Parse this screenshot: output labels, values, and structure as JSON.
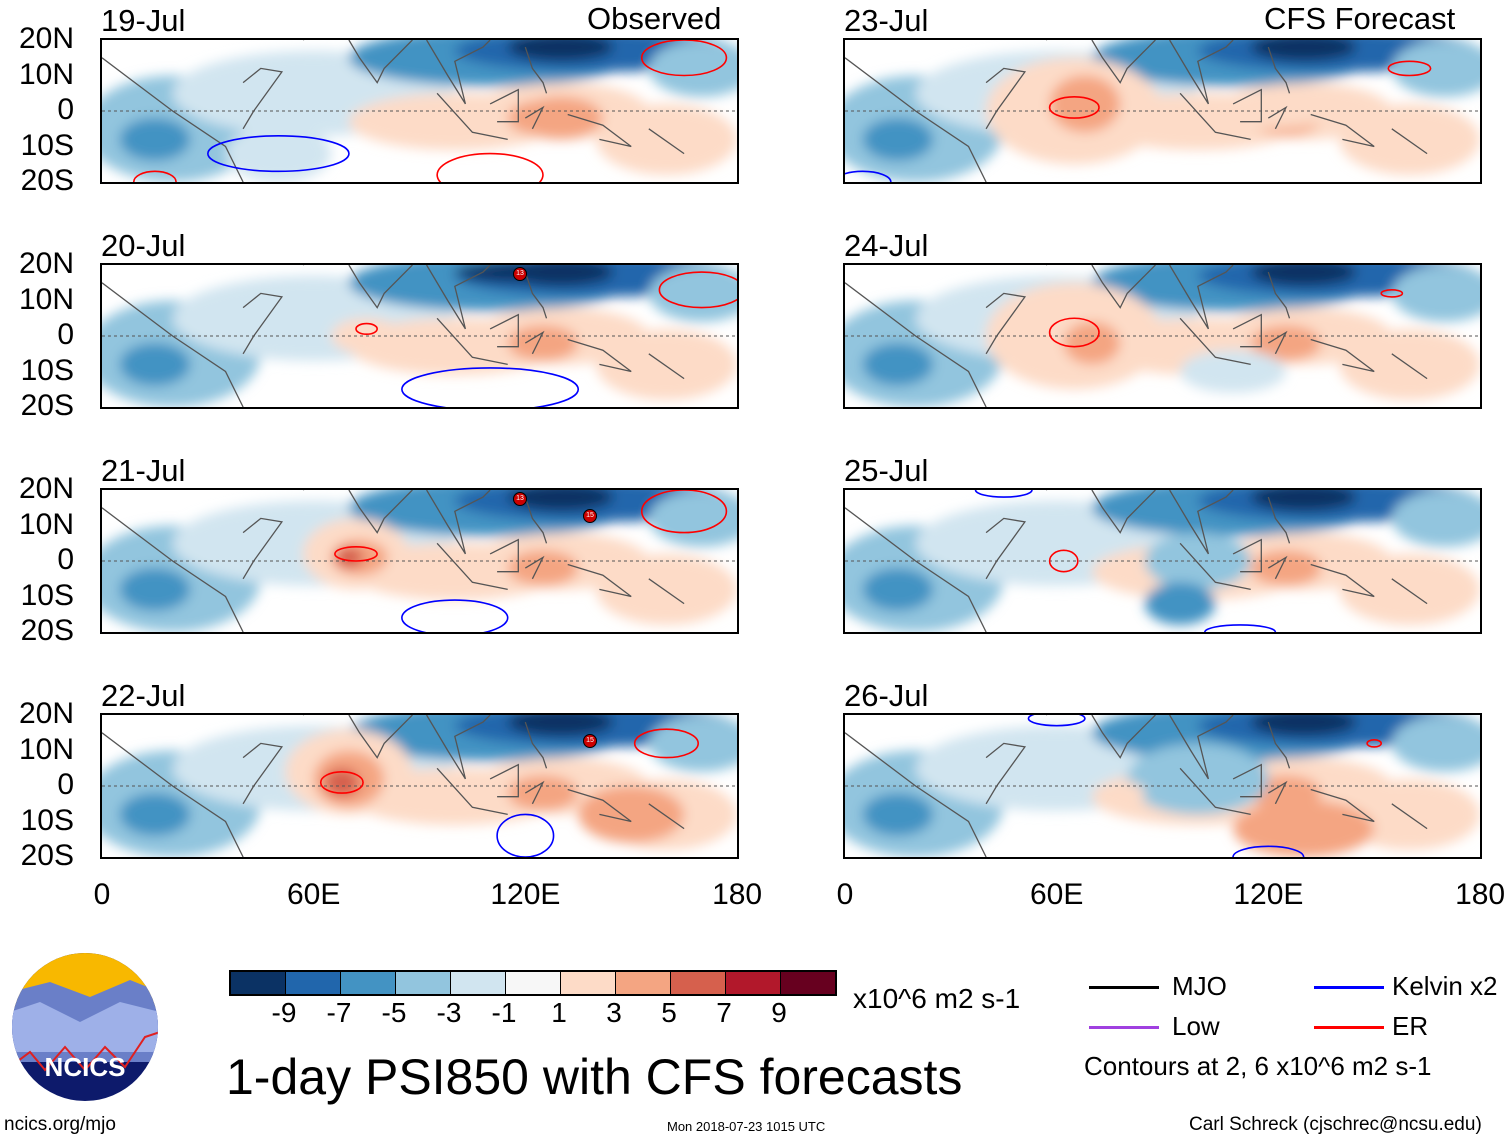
{
  "headers": {
    "observed": "Observed",
    "forecast": "CFS Forecast"
  },
  "panels_left": [
    {
      "date": "19-Jul"
    },
    {
      "date": "20-Jul"
    },
    {
      "date": "21-Jul"
    },
    {
      "date": "22-Jul"
    }
  ],
  "panels_right": [
    {
      "date": "23-Jul"
    },
    {
      "date": "24-Jul"
    },
    {
      "date": "25-Jul"
    },
    {
      "date": "26-Jul"
    }
  ],
  "lat_labels": [
    "20N",
    "10N",
    "0",
    "10S",
    "20S"
  ],
  "lon_labels": [
    "0",
    "60E",
    "120E",
    "180"
  ],
  "storm_markers": {
    "a": "13",
    "b": "15"
  },
  "colorbar": {
    "colors": [
      "#0b3264",
      "#2166ac",
      "#4393c3",
      "#92c5de",
      "#d1e5f0",
      "#f7f7f7",
      "#fddbc7",
      "#f4a582",
      "#d6604d",
      "#b2182b",
      "#67001f"
    ],
    "labels": [
      "-9",
      "-7",
      "-5",
      "-3",
      "-1",
      "1",
      "3",
      "5",
      "7",
      "9"
    ],
    "units": "x10^6 m2 s-1"
  },
  "title": "1-day PSI850 with CFS forecasts",
  "legend": {
    "items": [
      {
        "label": "MJO",
        "color": "#000000"
      },
      {
        "label": "Kelvin x2",
        "color": "#0000ff"
      },
      {
        "label": "Low",
        "color": "#a040e0"
      },
      {
        "label": "ER",
        "color": "#ff0000"
      }
    ],
    "note": "Contours at 2, 6 x10^6 m2 s-1"
  },
  "footer": {
    "left": "ncics.org/mjo",
    "center": "Mon 2018-07-23 1015 UTC",
    "right": "Carl Schreck (cjschrec@ncsu.edu)"
  },
  "logo_text": "NCICS"
}
